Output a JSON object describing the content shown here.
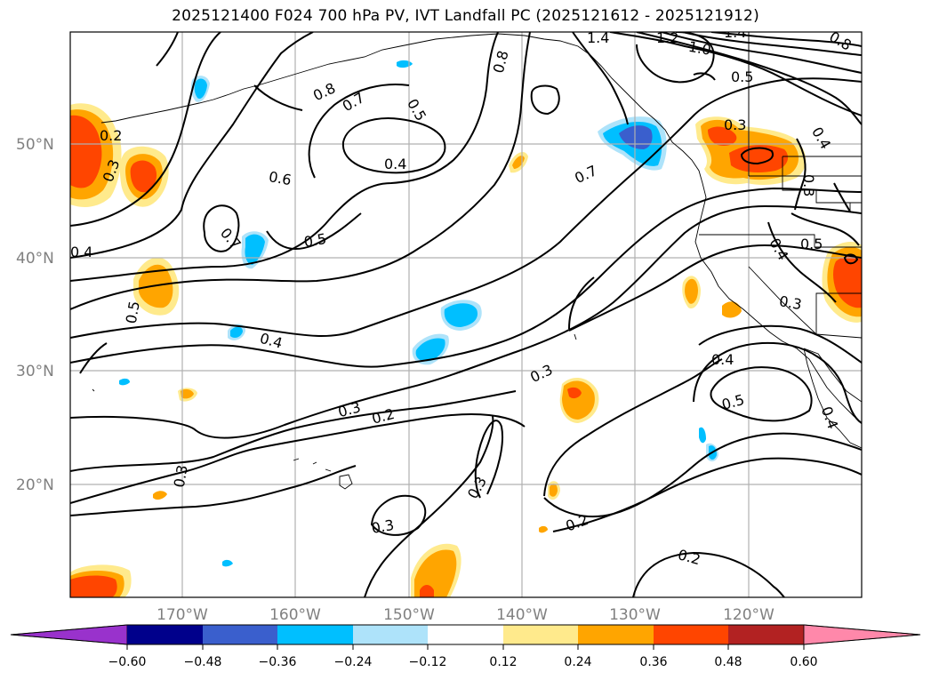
{
  "title": "2025121400 F024 700 hPa PV, IVT Landfall PC (2025121612 - 2025121912)",
  "map": {
    "lat_labels": [
      "50°N",
      "40°N",
      "30°N",
      "20°N"
    ],
    "lon_labels": [
      "170°W",
      "160°W",
      "150°W",
      "140°W",
      "130°W",
      "120°W"
    ],
    "contour_labels": [
      "0.2",
      "0.3",
      "0.4",
      "0.5",
      "0.6",
      "0.7",
      "0.8",
      "1.0",
      "1.2",
      "1.4"
    ],
    "colors": {
      "neg_strong": "#3a5fcd",
      "neg_mid": "#00bfff",
      "neg_weak": "#aee3fa",
      "pos_weak": "#ffea8c",
      "pos_mid": "#ffa500",
      "pos_strong": "#ff4500",
      "grid": "#b0b0b0"
    }
  },
  "colorbar": {
    "ticks": [
      "−0.60",
      "−0.48",
      "−0.36",
      "−0.24",
      "−0.12",
      "0.12",
      "0.24",
      "0.36",
      "0.48",
      "0.60"
    ],
    "colors": [
      "#9932cc",
      "#00008b",
      "#3a5fcd",
      "#00bfff",
      "#aee3fa",
      "#ffffff",
      "#ffea8c",
      "#ffa500",
      "#ff4500",
      "#b22222",
      "#ff88aa"
    ]
  }
}
